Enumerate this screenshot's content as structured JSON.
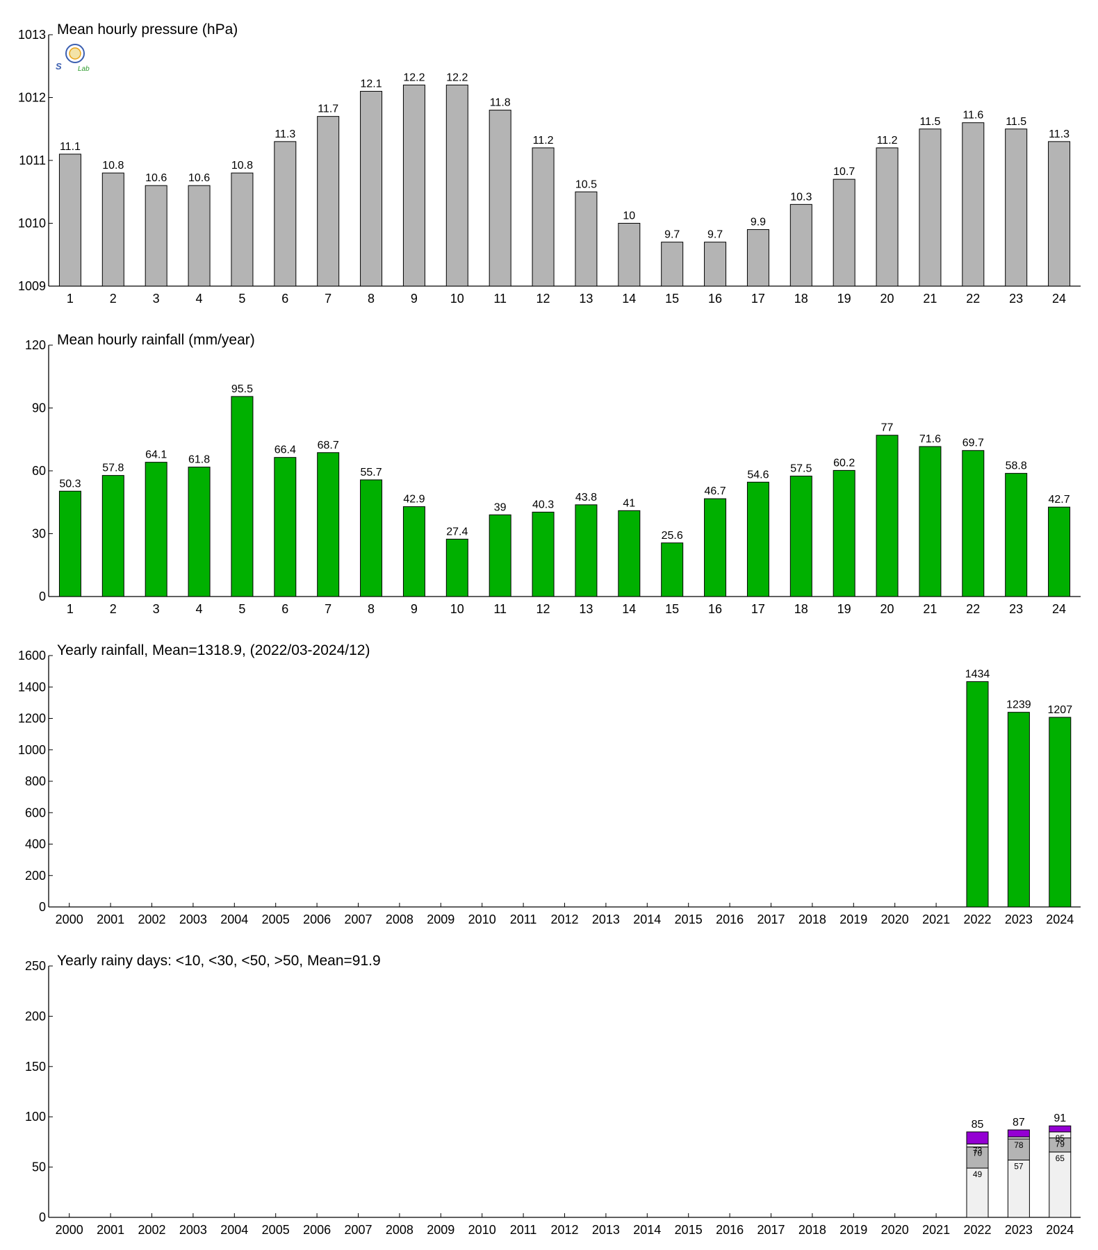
{
  "logo": {
    "text_top": "S",
    "text_bottom": "Lab",
    "emblem_color": "#3b5fb0",
    "accent_color": "#e8a317",
    "green_color": "#2e9b2e"
  },
  "colors": {
    "pressure": "#b4b4b4",
    "rainfall": "#00b000",
    "stack_lt10": "#f0f0f0",
    "stack_lt30": "#b4b4b4",
    "stack_lt50": "#f0f0f0",
    "stack_gt50": "#9400d3",
    "axis": "#000000"
  },
  "chart_data": [
    {
      "type": "bar",
      "title": "Mean hourly pressure (hPa)",
      "categories": [
        "1",
        "2",
        "3",
        "4",
        "5",
        "6",
        "7",
        "8",
        "9",
        "10",
        "11",
        "12",
        "13",
        "14",
        "15",
        "16",
        "17",
        "18",
        "19",
        "20",
        "21",
        "22",
        "23",
        "24"
      ],
      "values": [
        1011.1,
        1010.8,
        1010.6,
        1010.6,
        1010.8,
        1011.3,
        1011.7,
        1012.1,
        1012.2,
        1012.2,
        1011.8,
        1011.2,
        1010.5,
        1010,
        1009.7,
        1009.7,
        1009.9,
        1010.3,
        1010.7,
        1011.2,
        1011.5,
        1011.6,
        1011.5,
        1011.3
      ],
      "labels": [
        "11.1",
        "10.8",
        "10.6",
        "10.6",
        "10.8",
        "11.3",
        "11.7",
        "12.1",
        "12.2",
        "12.2",
        "11.8",
        "11.2",
        "10.5",
        "10",
        "9.7",
        "9.7",
        "9.9",
        "10.3",
        "10.7",
        "11.2",
        "11.5",
        "11.6",
        "11.5",
        "11.3"
      ],
      "ylim": [
        1009,
        1013
      ],
      "yticks": [
        "1009",
        "1010",
        "1011",
        "1012",
        "1013"
      ],
      "color": "#b4b4b4"
    },
    {
      "type": "bar",
      "title": "Mean hourly rainfall (mm/year)",
      "categories": [
        "1",
        "2",
        "3",
        "4",
        "5",
        "6",
        "7",
        "8",
        "9",
        "10",
        "11",
        "12",
        "13",
        "14",
        "15",
        "16",
        "17",
        "18",
        "19",
        "20",
        "21",
        "22",
        "23",
        "24"
      ],
      "values": [
        50.3,
        57.8,
        64.1,
        61.8,
        95.5,
        66.4,
        68.7,
        55.7,
        42.9,
        27.4,
        39,
        40.3,
        43.8,
        41,
        25.6,
        46.7,
        54.6,
        57.5,
        60.2,
        77,
        71.6,
        69.7,
        58.8,
        42.7
      ],
      "labels": [
        "50.3",
        "57.8",
        "64.1",
        "61.8",
        "95.5",
        "66.4",
        "68.7",
        "55.7",
        "42.9",
        "27.4",
        "39",
        "40.3",
        "43.8",
        "41",
        "25.6",
        "46.7",
        "54.6",
        "57.5",
        "60.2",
        "77",
        "71.6",
        "69.7",
        "58.8",
        "42.7"
      ],
      "ylim": [
        0,
        120
      ],
      "yticks": [
        "0",
        "30",
        "60",
        "90",
        "120"
      ],
      "color": "#00b000"
    },
    {
      "type": "bar",
      "title": "Yearly rainfall, Mean=1318.9, (2022/03-2024/12)",
      "categories": [
        "2000",
        "2001",
        "2002",
        "2003",
        "2004",
        "2005",
        "2006",
        "2007",
        "2008",
        "2009",
        "2010",
        "2011",
        "2012",
        "2013",
        "2014",
        "2015",
        "2016",
        "2017",
        "2018",
        "2019",
        "2020",
        "2021",
        "2022",
        "2023",
        "2024"
      ],
      "values": [
        null,
        null,
        null,
        null,
        null,
        null,
        null,
        null,
        null,
        null,
        null,
        null,
        null,
        null,
        null,
        null,
        null,
        null,
        null,
        null,
        null,
        null,
        1434,
        1239,
        1207
      ],
      "labels": [
        "",
        "",
        "",
        "",
        "",
        "",
        "",
        "",
        "",
        "",
        "",
        "",
        "",
        "",
        "",
        "",
        "",
        "",
        "",
        "",
        "",
        "",
        "1434",
        "1239",
        "1207"
      ],
      "ylim": [
        0,
        1600
      ],
      "yticks": [
        "0",
        "200",
        "400",
        "600",
        "800",
        "1000",
        "1200",
        "1400",
        "1600"
      ],
      "color": "#00b000"
    },
    {
      "type": "bar",
      "stacked": true,
      "title": "Yearly rainy days: <10, <30, <50, >50, Mean=91.9",
      "categories": [
        "2000",
        "2001",
        "2002",
        "2003",
        "2004",
        "2005",
        "2006",
        "2007",
        "2008",
        "2009",
        "2010",
        "2011",
        "2012",
        "2013",
        "2014",
        "2015",
        "2016",
        "2017",
        "2018",
        "2019",
        "2020",
        "2021",
        "2022",
        "2023",
        "2024"
      ],
      "cumulative": [
        [
          null,
          null,
          null,
          null
        ],
        [
          null,
          null,
          null,
          null
        ],
        [
          null,
          null,
          null,
          null
        ],
        [
          null,
          null,
          null,
          null
        ],
        [
          null,
          null,
          null,
          null
        ],
        [
          null,
          null,
          null,
          null
        ],
        [
          null,
          null,
          null,
          null
        ],
        [
          null,
          null,
          null,
          null
        ],
        [
          null,
          null,
          null,
          null
        ],
        [
          null,
          null,
          null,
          null
        ],
        [
          null,
          null,
          null,
          null
        ],
        [
          null,
          null,
          null,
          null
        ],
        [
          null,
          null,
          null,
          null
        ],
        [
          null,
          null,
          null,
          null
        ],
        [
          null,
          null,
          null,
          null
        ],
        [
          null,
          null,
          null,
          null
        ],
        [
          null,
          null,
          null,
          null
        ],
        [
          null,
          null,
          null,
          null
        ],
        [
          null,
          null,
          null,
          null
        ],
        [
          null,
          null,
          null,
          null
        ],
        [
          null,
          null,
          null,
          null
        ],
        [
          null,
          null,
          null,
          null
        ],
        [
          49,
          70,
          73,
          85
        ],
        [
          57,
          78,
          80,
          87
        ],
        [
          65,
          79,
          85,
          91
        ]
      ],
      "inner_labels": [
        [
          "",
          "",
          ""
        ],
        [
          "",
          "",
          ""
        ],
        [
          "",
          "",
          ""
        ],
        [
          "",
          "",
          ""
        ],
        [
          "",
          "",
          ""
        ],
        [
          "",
          "",
          ""
        ],
        [
          "",
          "",
          ""
        ],
        [
          "",
          "",
          ""
        ],
        [
          "",
          "",
          ""
        ],
        [
          "",
          "",
          ""
        ],
        [
          "",
          "",
          ""
        ],
        [
          "",
          "",
          ""
        ],
        [
          "",
          "",
          ""
        ],
        [
          "",
          "",
          ""
        ],
        [
          "",
          "",
          ""
        ],
        [
          "",
          "",
          ""
        ],
        [
          "",
          "",
          ""
        ],
        [
          "",
          "",
          ""
        ],
        [
          "",
          "",
          ""
        ],
        [
          "",
          "",
          ""
        ],
        [
          "",
          "",
          ""
        ],
        [
          "",
          "",
          ""
        ],
        [
          "49",
          "70",
          "73"
        ],
        [
          "57",
          "78",
          ""
        ],
        [
          "65",
          "79",
          "85"
        ]
      ],
      "labels": [
        "",
        "",
        "",
        "",
        "",
        "",
        "",
        "",
        "",
        "",
        "",
        "",
        "",
        "",
        "",
        "",
        "",
        "",
        "",
        "",
        "",
        "",
        "85",
        "87",
        "91"
      ],
      "ylim": [
        0,
        250
      ],
      "yticks": [
        "0",
        "50",
        "100",
        "150",
        "200",
        "250"
      ],
      "colors": [
        "#f0f0f0",
        "#b4b4b4",
        "#f0f0f0",
        "#9400d3"
      ]
    }
  ]
}
